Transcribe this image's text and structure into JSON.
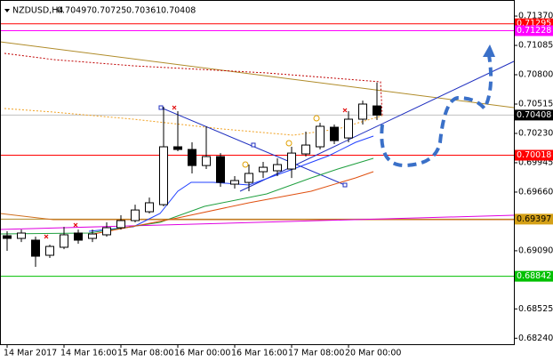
{
  "chart_data": {
    "type": "candlestick",
    "title": "NZDUSD,H4",
    "categories": [
      "14 Mar 2017",
      null,
      null,
      null,
      "14 Mar 16:00",
      null,
      null,
      null,
      "15 Mar 08:00",
      null,
      null,
      null,
      "16 Mar 00:00",
      null,
      null,
      null,
      "16 Mar 16:00",
      null,
      null,
      null,
      "17 Mar 08:00",
      null,
      null,
      null,
      "20 Mar 00:00",
      null,
      null
    ],
    "open": [
      0.69236,
      0.6921,
      0.69193,
      0.69046,
      0.69124,
      0.69262,
      0.6921,
      0.69245,
      0.69314,
      0.69383,
      0.69469,
      0.69538,
      0.701,
      0.70074,
      0.69918,
      0.70005,
      0.69737,
      0.69754,
      0.69858,
      0.69867,
      0.69884,
      0.70031,
      0.701,
      0.7029,
      0.70186,
      0.70368,
      0.70497
    ],
    "high": [
      0.69279,
      0.69296,
      0.69227,
      0.69149,
      0.69322,
      0.69296,
      0.69296,
      0.69366,
      0.69435,
      0.69538,
      0.69607,
      0.70489,
      0.70446,
      0.70143,
      0.70299,
      0.70039,
      0.69815,
      0.69927,
      0.69953,
      0.69988,
      0.701,
      0.70247,
      0.70333,
      0.70316,
      0.70446,
      0.70549,
      0.70725
    ],
    "low": [
      0.69089,
      0.69175,
      0.68934,
      0.6902,
      0.69106,
      0.69158,
      0.69175,
      0.69227,
      0.69296,
      0.69366,
      0.69452,
      0.69521,
      0.70057,
      0.69841,
      0.69884,
      0.69711,
      0.69694,
      0.69668,
      0.69797,
      0.69815,
      0.69797,
      0.70005,
      0.70074,
      0.70126,
      0.70143,
      0.70316,
      0.70361
    ],
    "close": [
      0.6921,
      0.69262,
      0.69037,
      0.69132,
      0.69245,
      0.69193,
      0.69253,
      0.69314,
      0.69383,
      0.69486,
      0.69556,
      0.701,
      0.70074,
      0.69918,
      0.70005,
      0.69754,
      0.69772,
      0.69841,
      0.69901,
      0.69927,
      0.70039,
      0.70117,
      0.70299,
      0.7016,
      0.70368,
      0.70515,
      0.70408
    ],
    "bull_color": "#ffffff",
    "bear_color": "#000000",
    "ylim": [
      0.68182,
      0.71526
    ],
    "yticks": [
      {
        "value": 0.7137,
        "label": "0.71370"
      },
      0.71085,
      {
        "value": 0.708,
        "label": "0.70800"
      },
      0.70515,
      {
        "value": 0.7023,
        "label": "0.70230"
      },
      0.69945,
      {
        "value": 0.6966,
        "label": "0.69660"
      },
      {
        "value": 0.6909,
        "label": "0.69090"
      },
      0.68525,
      {
        "value": 0.6824,
        "label": "0.68240"
      }
    ],
    "levels": [
      {
        "value": 0.71295,
        "color": "#ff0000",
        "line_color": "#ff0000"
      },
      {
        "value": 0.71228,
        "color": "#ff00ff",
        "line_color": "#ff00ff"
      },
      {
        "value": 0.70408,
        "color": "#000000",
        "line_color": "#c0c0c0"
      },
      {
        "value": 0.70018,
        "color": "#ff0000",
        "line_color": "#ff0000"
      },
      {
        "value": 0.69397,
        "color": "#d4a017",
        "line_color": "#b08c2a"
      },
      {
        "value": 0.68842,
        "color": "#00c000",
        "line_color": "#00c000"
      }
    ]
  }
}
